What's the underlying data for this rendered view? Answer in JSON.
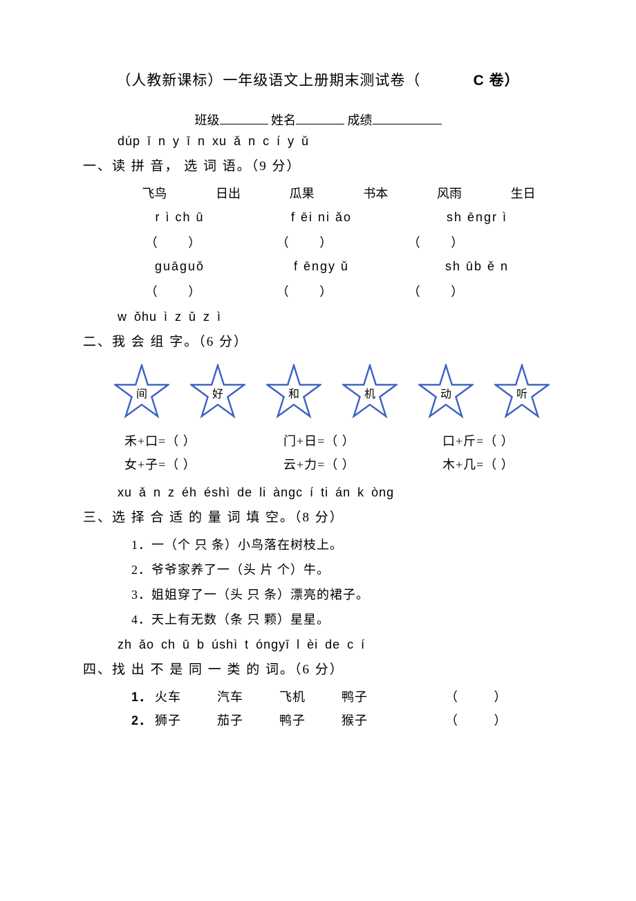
{
  "title": {
    "main": "（人教新课标）一年级语文上册期末测试卷（",
    "volume": "C 卷）"
  },
  "info": {
    "class_label": "班级",
    "name_label": "姓名",
    "score_label": "成绩"
  },
  "q1": {
    "pinyin": "dúp ī n y ī n xu ǎ n c í y ǔ",
    "heading": "一、读  拼 音， 选 词 语。（9 分）",
    "words": [
      "飞鸟",
      "日出",
      "瓜果",
      "书本",
      "风雨",
      "生日"
    ],
    "py_row1": [
      "r ì ch ū",
      "f        ēi ni   ǎo",
      "sh       ēngr  ì"
    ],
    "py_row2": [
      "ɡuāɡuǒ",
      "f        ēngy  ǔ",
      "sh       ūb ě n"
    ],
    "paren": "（           ）"
  },
  "q2": {
    "pinyin": "w   ǒhu ì z ǔ z ì",
    "heading": "二、我   会   组 字。（6 分）",
    "stars": [
      "间",
      "好",
      "和",
      "机",
      "动",
      "听"
    ],
    "star_color": "#3b5fc4",
    "eq_row1": [
      "禾+口=（        ）",
      "门+日=（        ）",
      "口+斤=（        ）"
    ],
    "eq_row2": [
      "女+子=（        ）",
      "云+力=（        ）",
      "木+几=（        ）"
    ]
  },
  "q3": {
    "pinyin": "xu   ǎ n z éh éshì de li       àngc í ti   án k  òng",
    "heading": "三、选   择 合  适  的    量 词   填 空。（8 分）",
    "items": [
      "1．一（个   只   条）小鸟落在树枝上。",
      "2．爷爷家养了一（头   片   个）牛。",
      "3．姐姐穿了一（头   只   条）漂亮的裙子。",
      "4．天上有无数（条   只   颗）星星。"
    ]
  },
  "q4": {
    "pinyin": "zh   ǎo ch ū b úshì t óngyī l    èi de c   í",
    "heading": "四、找   出   不 是    同 一 类 的 词。（6 分）",
    "rows": [
      {
        "num": "1．",
        "words": [
          "火车",
          "汽车",
          "飞机",
          "鸭子"
        ],
        "paren": "（          ）"
      },
      {
        "num": "2．",
        "words": [
          "狮子",
          "茄子",
          "鸭子",
          "猴子"
        ],
        "paren": "（          ）"
      }
    ]
  }
}
